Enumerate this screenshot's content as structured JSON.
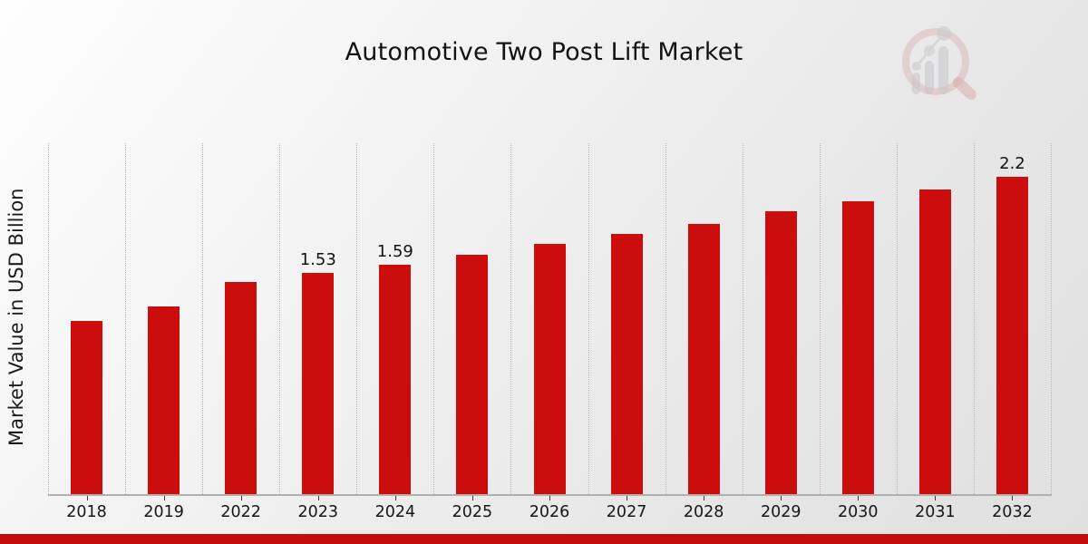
{
  "page": {
    "background_from": "#fefefe",
    "background_to": "#e0e0e0",
    "bottom_strip_color": "#c20b0b",
    "text_color": "#1a1a1a"
  },
  "logo": {
    "icon": "magnifier-with-bar-chart-watermark",
    "ring_color": "#dcb0b0",
    "glyph_color": "#c6c6ca"
  },
  "chart_data": {
    "type": "bar",
    "title": "Automotive Two Post Lift Market",
    "xlabel": "",
    "ylabel": "Market Value in USD Billion",
    "categories": [
      "2018",
      "2019",
      "2022",
      "2023",
      "2024",
      "2025",
      "2026",
      "2027",
      "2028",
      "2029",
      "2030",
      "2031",
      "2032"
    ],
    "values": [
      1.2,
      1.3,
      1.47,
      1.53,
      1.59,
      1.66,
      1.73,
      1.8,
      1.87,
      1.96,
      2.03,
      2.11,
      2.2
    ],
    "bar_labels": [
      "",
      "",
      "",
      "1.53",
      "1.59",
      "",
      "",
      "",
      "",
      "",
      "",
      "",
      "2.2"
    ],
    "bar_color": "#cc0d0d",
    "ylim": [
      0,
      2.43
    ],
    "grid": "vertical-dotted",
    "gridline_color": "#b7b7b7",
    "axis_line_color": "#b0b0b0",
    "legend": "none"
  }
}
